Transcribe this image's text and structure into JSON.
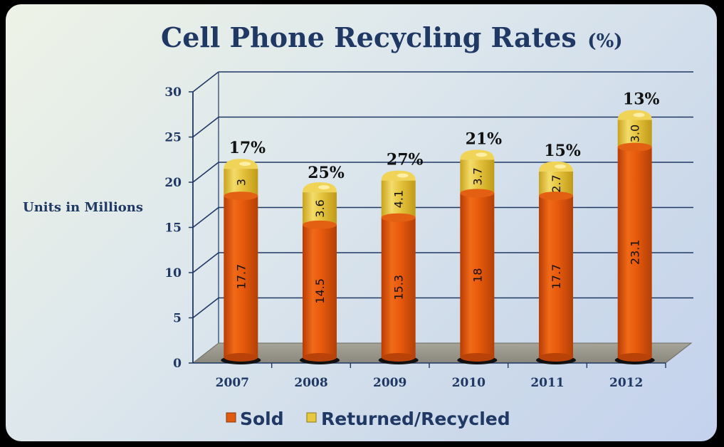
{
  "chart_data": {
    "type": "bar",
    "stacked": true,
    "title": "Cell Phone Recycling Rates",
    "title_suffix": "(%)",
    "ylabel": "Units in Millions",
    "xlabel": "",
    "ylim": [
      0,
      30
    ],
    "yticks": [
      0,
      5,
      10,
      15,
      20,
      25,
      30
    ],
    "grid": true,
    "legend_position": "bottom",
    "categories": [
      "2007",
      "2008",
      "2009",
      "2010",
      "2011",
      "2012"
    ],
    "series": [
      {
        "name": "Sold",
        "values": [
          17.7,
          14.5,
          15.3,
          18,
          17.7,
          23.1
        ],
        "labels": [
          "17.7",
          "14.5",
          "15.3",
          "18",
          "17.7",
          "23.1"
        ],
        "color": "#e05a10"
      },
      {
        "name": "Returned/Recycled",
        "values": [
          3,
          3.6,
          4.1,
          3.7,
          2.7,
          3.0
        ],
        "labels": [
          "3",
          "3.6",
          "4.1",
          "3.7",
          "2.7",
          "3.0"
        ],
        "color": "#e8c840"
      }
    ],
    "rate_labels": [
      "17%",
      "25%",
      "27%",
      "21%",
      "15%",
      "13%"
    ]
  }
}
